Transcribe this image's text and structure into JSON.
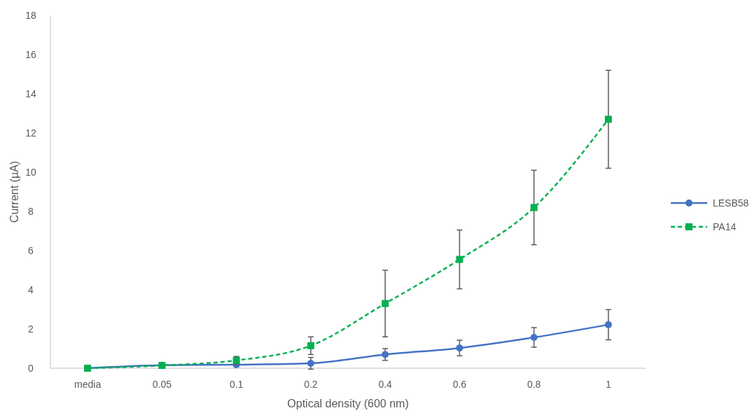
{
  "chart_data": {
    "type": "line",
    "xlabel": "Optical density (600 nm)",
    "ylabel": "Current (µA)",
    "categories": [
      "media",
      "0.05",
      "0.1",
      "0.2",
      "0.4",
      "0.6",
      "0.8",
      "1"
    ],
    "ylim": [
      0,
      18
    ],
    "yticks": [
      0,
      2,
      4,
      6,
      8,
      10,
      12,
      14,
      16,
      18
    ],
    "grid": false,
    "legend": "right",
    "series": [
      {
        "name": "LESB58",
        "color": "#4472c4",
        "marker": "circle",
        "line_style": "solid",
        "values": [
          0,
          0.15,
          0.18,
          0.25,
          0.7,
          1.03,
          1.57,
          2.22
        ],
        "errors": [
          null,
          null,
          0.1,
          0.3,
          0.3,
          0.4,
          0.5,
          0.77
        ]
      },
      {
        "name": "PA14",
        "color": "#00b050",
        "marker": "square",
        "line_style": "dashed",
        "values": [
          0,
          0.14,
          0.4,
          1.15,
          3.3,
          5.55,
          8.2,
          12.7
        ],
        "errors": [
          null,
          null,
          0.2,
          0.45,
          1.7,
          1.5,
          1.9,
          2.5
        ]
      }
    ]
  }
}
